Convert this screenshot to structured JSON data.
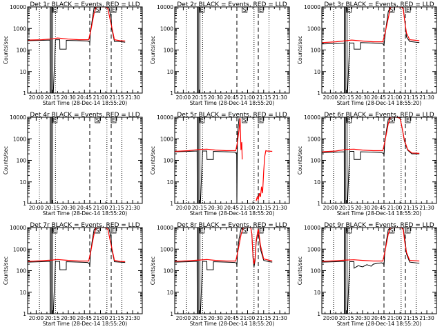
{
  "colors": {
    "events": "#000000",
    "lld": "#ff0000",
    "background": "#ffffff"
  },
  "x_axis": {
    "label": "Start Time (28-Dec-14 18:55:20)",
    "ticks": [
      {
        "min": 1200,
        "label": "20:00"
      },
      {
        "min": 1215,
        "label": "20:15"
      },
      {
        "min": 1230,
        "label": "20:30"
      },
      {
        "min": 1245,
        "label": "20:45"
      },
      {
        "min": 1260,
        "label": "21:00"
      },
      {
        "min": 1275,
        "label": "21:15"
      },
      {
        "min": 1290,
        "label": "21:30"
      }
    ],
    "range_min": [
      1192,
      1299
    ]
  },
  "y_axis": {
    "label": "Counts/sec",
    "log": true,
    "ylim": [
      1,
      10000
    ],
    "ticks": [
      {
        "v": 1,
        "label": "1"
      },
      {
        "v": 10,
        "label": "10"
      },
      {
        "v": 100,
        "label": "100"
      },
      {
        "v": 1000,
        "label": "1000"
      },
      {
        "v": 10000,
        "label": "10000"
      }
    ]
  },
  "markers": {
    "dotted_min": [
      1203,
      1218,
      1266,
      1280
    ],
    "solid_min": [
      1213,
      1214,
      1215.5
    ],
    "dashed_min": [
      1250,
      1270
    ],
    "flag_labels": [
      {
        "min": 1215,
        "text": "E"
      },
      {
        "min": 1255,
        "text": "S"
      },
      {
        "min": 1270,
        "text": "E"
      }
    ]
  },
  "chart_data": [
    {
      "type": "line",
      "title": "Det 1r BLACK = Events, RED = LLD",
      "series": [
        {
          "name": "Events",
          "color": "#000000",
          "x": [
            1192,
            1205,
            1212.9,
            1213,
            1216,
            1218,
            1222,
            1222.1,
            1228,
            1228.1,
            1240,
            1248,
            1249.8,
            1250,
            1250.5,
            1252,
            1254,
            1256,
            1260,
            1264,
            1266,
            1268,
            1270,
            1270.5,
            1273,
            1278,
            1280,
            1283
          ],
          "y": [
            270,
            280,
            290,
            1,
            1,
            300,
            300,
            110,
            110,
            280,
            270,
            260,
            240,
            200,
            600,
            2000,
            9000,
            10000,
            10000,
            10000,
            10000,
            9000,
            3000,
            1000,
            250,
            250,
            240,
            230
          ]
        },
        {
          "name": "LLD",
          "color": "#ff0000",
          "x": [
            1192,
            1205,
            1215,
            1220,
            1230,
            1240,
            1249,
            1251,
            1254,
            1256,
            1260,
            1265,
            1267,
            1269,
            1271,
            1273,
            1278,
            1283
          ],
          "y": [
            290,
            300,
            330,
            360,
            320,
            300,
            300,
            800,
            5000,
            10000,
            10000,
            10000,
            8000,
            2500,
            900,
            300,
            270,
            260
          ]
        }
      ]
    },
    {
      "type": "line",
      "title": "Det 2r BLACK = Events, RED = LLD",
      "series": [
        {
          "name": "Events",
          "color": "#000000",
          "x": [],
          "y": []
        },
        {
          "name": "LLD",
          "color": "#ff0000",
          "x": [],
          "y": []
        }
      ]
    },
    {
      "type": "line",
      "title": "Det 3r BLACK = Events, RED = LLD",
      "series": [
        {
          "name": "Events",
          "color": "#000000",
          "x": [
            1192,
            1205,
            1212.9,
            1213,
            1216,
            1218,
            1222,
            1222.1,
            1228,
            1228.1,
            1240,
            1248,
            1249.8,
            1250,
            1250.5,
            1252,
            1254,
            1256,
            1260,
            1266,
            1268,
            1270,
            1271,
            1274,
            1280,
            1283
          ],
          "y": [
            190,
            200,
            210,
            1,
            1,
            210,
            210,
            110,
            110,
            220,
            210,
            200,
            180,
            150,
            300,
            1200,
            6000,
            10000,
            10000,
            10000,
            9000,
            1200,
            400,
            250,
            230,
            220
          ]
        },
        {
          "name": "LLD",
          "color": "#ff0000",
          "x": [
            1192,
            1205,
            1215,
            1220,
            1230,
            1240,
            1249,
            1251,
            1254,
            1256,
            1260,
            1266,
            1268,
            1269.5,
            1271,
            1274,
            1280,
            1283
          ],
          "y": [
            220,
            240,
            270,
            290,
            260,
            240,
            240,
            600,
            3000,
            10000,
            10000,
            10000,
            8000,
            2000,
            600,
            300,
            280,
            270
          ]
        }
      ]
    },
    {
      "type": "line",
      "title": "Det 4r BLACK = Events, RED = LLD",
      "series": [
        {
          "name": "Events",
          "color": "#000000",
          "x": [],
          "y": []
        },
        {
          "name": "LLD",
          "color": "#ff0000",
          "x": [],
          "y": []
        }
      ]
    },
    {
      "type": "line",
      "title": "Det 5r BLACK = Events, RED = LLD",
      "series": [
        {
          "name": "Events",
          "color": "#000000",
          "x": [
            1192,
            1205,
            1212.9,
            1213,
            1216,
            1218,
            1222,
            1222.1,
            1228,
            1228.1,
            1240,
            1248,
            1249.8,
            1250,
            1250.5,
            1252
          ],
          "y": [
            250,
            260,
            270,
            1,
            1,
            270,
            270,
            110,
            110,
            260,
            250,
            240,
            200,
            1,
            1500,
            9000
          ]
        },
        {
          "name": "LLD",
          "color": "#ff0000",
          "x": [
            1192,
            1205,
            1215,
            1222,
            1230,
            1240,
            1249,
            1250.5,
            1252,
            1253,
            1253.8,
            1254.6,
            1255
          ],
          "y": [
            260,
            280,
            320,
            330,
            300,
            280,
            280,
            700,
            2500,
            9000,
            300,
            700,
            110
          ]
        },
        {
          "name": "LLD",
          "color": "#ff0000",
          "x": [
            1268,
            1269,
            1270,
            1271,
            1272,
            1273,
            1274,
            1275,
            1276,
            1277,
            1278,
            1283
          ],
          "y": [
            1.3,
            2,
            1.5,
            3,
            2,
            6,
            3,
            30,
            150,
            280,
            270,
            260
          ]
        }
      ]
    },
    {
      "type": "line",
      "title": "Det 6r BLACK = Events, RED = LLD",
      "series": [
        {
          "name": "Events",
          "color": "#000000",
          "x": [
            1192,
            1205,
            1212.9,
            1213,
            1216,
            1218,
            1222,
            1222.1,
            1228,
            1228.1,
            1240,
            1248,
            1249.8,
            1250,
            1250.5,
            1252,
            1254,
            1256,
            1262,
            1265,
            1267,
            1269,
            1272,
            1276,
            1280,
            1283
          ],
          "y": [
            230,
            240,
            250,
            1,
            1,
            260,
            260,
            110,
            110,
            250,
            240,
            230,
            200,
            150,
            500,
            2000,
            8000,
            10000,
            10000,
            9000,
            3000,
            800,
            300,
            200,
            200,
            200
          ]
        },
        {
          "name": "LLD",
          "color": "#ff0000",
          "x": [
            1192,
            1205,
            1215,
            1222,
            1230,
            1240,
            1249,
            1251,
            1254,
            1256,
            1262,
            1265,
            1267,
            1269,
            1272,
            1276,
            1283
          ],
          "y": [
            250,
            270,
            320,
            330,
            300,
            280,
            280,
            800,
            5000,
            10000,
            10000,
            9000,
            3000,
            900,
            320,
            220,
            210
          ]
        }
      ]
    },
    {
      "type": "line",
      "title": "Det 7r BLACK = Events, RED = LLD",
      "series": [
        {
          "name": "Events",
          "color": "#000000",
          "x": [
            1192,
            1205,
            1212.9,
            1213,
            1216,
            1218,
            1222,
            1222.1,
            1228,
            1228.1,
            1240,
            1248,
            1249.8,
            1250,
            1250.5,
            1252,
            1254,
            1256,
            1260,
            1264,
            1266,
            1268,
            1270,
            1270.5,
            1273,
            1278,
            1283
          ],
          "y": [
            250,
            260,
            270,
            1,
            1,
            270,
            270,
            110,
            110,
            260,
            250,
            240,
            200,
            150,
            500,
            2000,
            8000,
            10000,
            10000,
            10000,
            10000,
            9000,
            3000,
            1000,
            260,
            250,
            240
          ]
        },
        {
          "name": "LLD",
          "color": "#ff0000",
          "x": [
            1192,
            1205,
            1215,
            1220,
            1230,
            1240,
            1249,
            1251,
            1254,
            1256,
            1260,
            1265,
            1267,
            1269,
            1271,
            1273,
            1278,
            1283
          ],
          "y": [
            270,
            290,
            310,
            330,
            300,
            280,
            280,
            800,
            5000,
            10000,
            10000,
            10000,
            8000,
            2500,
            900,
            300,
            270,
            260
          ]
        }
      ]
    },
    {
      "type": "line",
      "title": "Det 8r BLACK = Events, RED = LLD",
      "series": [
        {
          "name": "Events",
          "color": "#000000",
          "x": [
            1192,
            1205,
            1212.9,
            1213,
            1216,
            1218,
            1222,
            1222.1,
            1228,
            1228.1,
            1240,
            1248,
            1249.8,
            1250,
            1250.5,
            1252,
            1254,
            1256,
            1260,
            1263,
            1264,
            1265,
            1266,
            1267,
            1268,
            1270,
            1272,
            1275,
            1280,
            1283
          ],
          "y": [
            250,
            260,
            270,
            1,
            1,
            270,
            270,
            110,
            110,
            260,
            250,
            240,
            220,
            150,
            600,
            3000,
            9000,
            10000,
            10000,
            10000,
            5000,
            400,
            150,
            300,
            2000,
            8000,
            1000,
            300,
            260,
            250
          ]
        },
        {
          "name": "LLD",
          "color": "#ff0000",
          "x": [
            1192,
            1205,
            1215,
            1222,
            1230,
            1240,
            1249,
            1251,
            1254,
            1256,
            1260,
            1263,
            1264,
            1265,
            1266,
            1267,
            1268,
            1270,
            1272,
            1275,
            1283
          ],
          "y": [
            270,
            290,
            310,
            330,
            300,
            280,
            280,
            800,
            5000,
            10000,
            10000,
            10000,
            5000,
            500,
            200,
            400,
            2500,
            9000,
            1500,
            350,
            280
          ]
        }
      ]
    },
    {
      "type": "line",
      "title": "Det 9r BLACK = Events, RED = LLD",
      "series": [
        {
          "name": "Events",
          "color": "#000000",
          "x": [
            1192,
            1205,
            1212.9,
            1213,
            1216,
            1218,
            1222,
            1222.1,
            1226,
            1230,
            1234,
            1238,
            1240,
            1244,
            1248,
            1249.8,
            1250,
            1250.5,
            1252,
            1254,
            1256,
            1260,
            1266,
            1268,
            1270,
            1271,
            1274,
            1280,
            1283
          ],
          "y": [
            250,
            260,
            270,
            1,
            1,
            260,
            260,
            130,
            170,
            150,
            190,
            160,
            200,
            220,
            230,
            200,
            150,
            500,
            2000,
            8000,
            10000,
            10000,
            10000,
            9000,
            2000,
            600,
            250,
            230,
            220
          ]
        },
        {
          "name": "LLD",
          "color": "#ff0000",
          "x": [
            1192,
            1205,
            1215,
            1222,
            1230,
            1240,
            1249,
            1251,
            1254,
            1256,
            1260,
            1266,
            1268,
            1269.5,
            1271,
            1274,
            1283
          ],
          "y": [
            270,
            290,
            310,
            320,
            300,
            280,
            280,
            800,
            5000,
            10000,
            10000,
            10000,
            8000,
            2000,
            700,
            300,
            280
          ]
        }
      ]
    }
  ]
}
